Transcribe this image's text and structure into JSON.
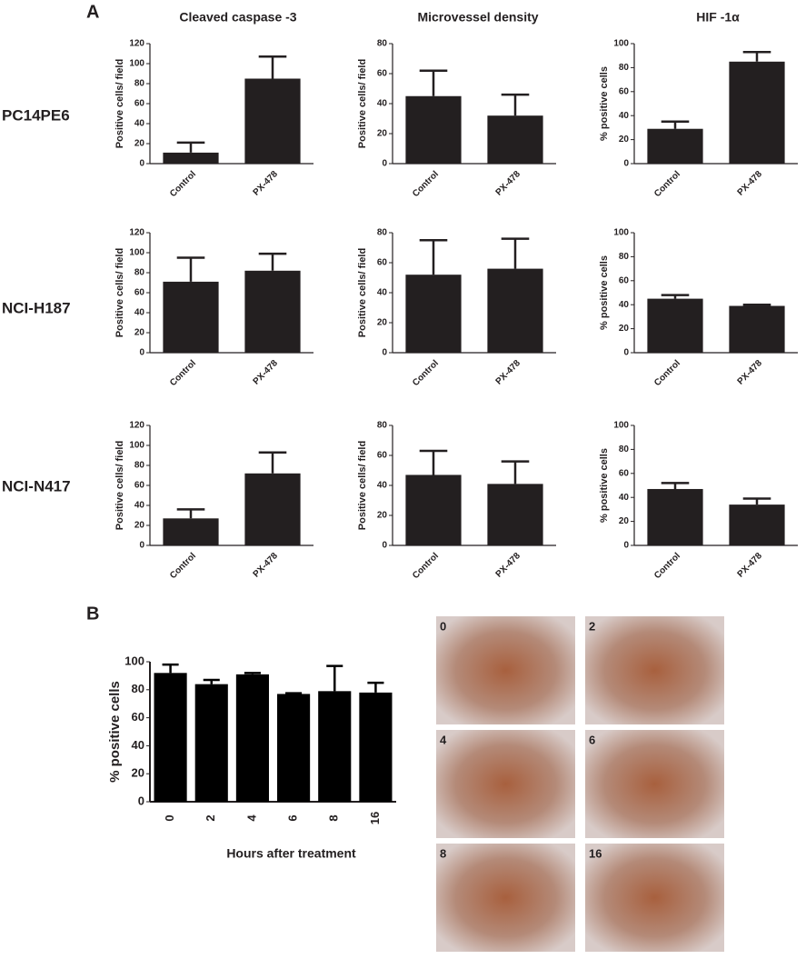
{
  "figure": {
    "panel_a_label": "A",
    "panel_b_label": "B",
    "columns": [
      "Cleaved caspase -3",
      "Microvessel density",
      "HIF -1α"
    ],
    "rows": [
      "PC14PE6",
      "NCI-H187",
      "NCI-N417"
    ],
    "micrographs": [
      "0",
      "2",
      "4",
      "6",
      "8",
      "16"
    ]
  },
  "chart_data": [
    {
      "type": "bar",
      "ylabel": "Positive cells/ field",
      "categories": [
        "Control",
        "PX-478"
      ],
      "values": [
        11,
        85
      ],
      "errors": [
        10,
        22
      ],
      "color": "#231f20",
      "ylim": [
        0,
        120
      ],
      "yticks": [
        0,
        20,
        40,
        60,
        80,
        100,
        120
      ]
    },
    {
      "type": "bar",
      "ylabel": "Positive cells/ field",
      "categories": [
        "Control",
        "PX-478"
      ],
      "values": [
        45,
        32
      ],
      "errors": [
        17,
        14
      ],
      "color": "#231f20",
      "ylim": [
        0,
        80
      ],
      "yticks": [
        0,
        20,
        40,
        60,
        80
      ]
    },
    {
      "type": "bar",
      "ylabel": "% positive cells",
      "categories": [
        "Control",
        "PX-478"
      ],
      "values": [
        29,
        85
      ],
      "errors": [
        6,
        8
      ],
      "color": "#231f20",
      "ylim": [
        0,
        100
      ],
      "yticks": [
        0,
        20,
        40,
        60,
        80,
        100
      ]
    },
    {
      "type": "bar",
      "ylabel": "Positive cells/ field",
      "categories": [
        "Control",
        "PX-478"
      ],
      "values": [
        71,
        82
      ],
      "errors": [
        24,
        17
      ],
      "color": "#231f20",
      "ylim": [
        0,
        120
      ],
      "yticks": [
        0,
        20,
        40,
        60,
        80,
        100,
        120
      ]
    },
    {
      "type": "bar",
      "ylabel": "Positive cells/ field",
      "categories": [
        "Control",
        "PX-478"
      ],
      "values": [
        52,
        56
      ],
      "errors": [
        23,
        20
      ],
      "color": "#231f20",
      "ylim": [
        0,
        80
      ],
      "yticks": [
        0,
        20,
        40,
        60,
        80
      ]
    },
    {
      "type": "bar",
      "ylabel": "% positive cells",
      "categories": [
        "Control",
        "PX-478"
      ],
      "values": [
        45,
        39
      ],
      "errors": [
        3,
        1
      ],
      "color": "#231f20",
      "ylim": [
        0,
        100
      ],
      "yticks": [
        0,
        20,
        40,
        60,
        80,
        100
      ]
    },
    {
      "type": "bar",
      "ylabel": "Positive cells/ field",
      "categories": [
        "Control",
        "PX-478"
      ],
      "values": [
        27,
        72
      ],
      "errors": [
        9,
        21
      ],
      "color": "#231f20",
      "ylim": [
        0,
        120
      ],
      "yticks": [
        0,
        20,
        40,
        60,
        80,
        100,
        120
      ]
    },
    {
      "type": "bar",
      "ylabel": "Positive cells/ field",
      "categories": [
        "Control",
        "PX-478"
      ],
      "values": [
        47,
        41
      ],
      "errors": [
        16,
        15
      ],
      "color": "#231f20",
      "ylim": [
        0,
        80
      ],
      "yticks": [
        0,
        20,
        40,
        60,
        80
      ]
    },
    {
      "type": "bar",
      "ylabel": "% positive cells",
      "categories": [
        "Control",
        "PX-478"
      ],
      "values": [
        47,
        34
      ],
      "errors": [
        5,
        5
      ],
      "color": "#231f20",
      "ylim": [
        0,
        100
      ],
      "yticks": [
        0,
        20,
        40,
        60,
        80,
        100
      ]
    },
    {
      "type": "bar",
      "ylabel": "% positive cells",
      "xlabel": "Hours after treatment",
      "categories": [
        "0",
        "2",
        "4",
        "6",
        "8",
        "16"
      ],
      "values": [
        92,
        84,
        91,
        77,
        79,
        78
      ],
      "errors": [
        6,
        3,
        1,
        0.5,
        18,
        7
      ],
      "color": "#000000",
      "ylim": [
        0,
        100
      ],
      "yticks": [
        0,
        20,
        40,
        60,
        80,
        100
      ]
    }
  ]
}
